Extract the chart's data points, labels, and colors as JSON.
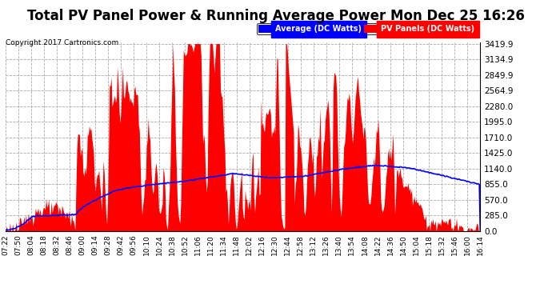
{
  "title": "Total PV Panel Power & Running Average Power Mon Dec 25 16:26",
  "copyright": "Copyright 2017 Cartronics.com",
  "legend_avg": "Average (DC Watts)",
  "legend_pv": "PV Panels (DC Watts)",
  "ymin": 0.0,
  "ymax": 3419.9,
  "yticks": [
    0.0,
    285.0,
    570.0,
    855.0,
    1140.0,
    1425.0,
    1710.0,
    1995.0,
    2280.0,
    2564.9,
    2849.9,
    3134.9,
    3419.9
  ],
  "background_color": "#ffffff",
  "plot_bg_color": "#ffffff",
  "grid_color": "#aaaaaa",
  "bar_color": "#ff0000",
  "avg_color": "#0000ff",
  "title_fontsize": 12,
  "xtick_labels": [
    "07:22",
    "07:50",
    "08:04",
    "08:18",
    "08:32",
    "08:46",
    "09:00",
    "09:14",
    "09:28",
    "09:42",
    "09:56",
    "10:10",
    "10:24",
    "10:38",
    "10:52",
    "11:06",
    "11:20",
    "11:34",
    "11:48",
    "12:02",
    "12:16",
    "12:30",
    "12:44",
    "12:58",
    "13:12",
    "13:26",
    "13:40",
    "13:54",
    "14:08",
    "14:22",
    "14:36",
    "14:50",
    "15:04",
    "15:18",
    "15:32",
    "15:46",
    "16:00",
    "16:14"
  ]
}
